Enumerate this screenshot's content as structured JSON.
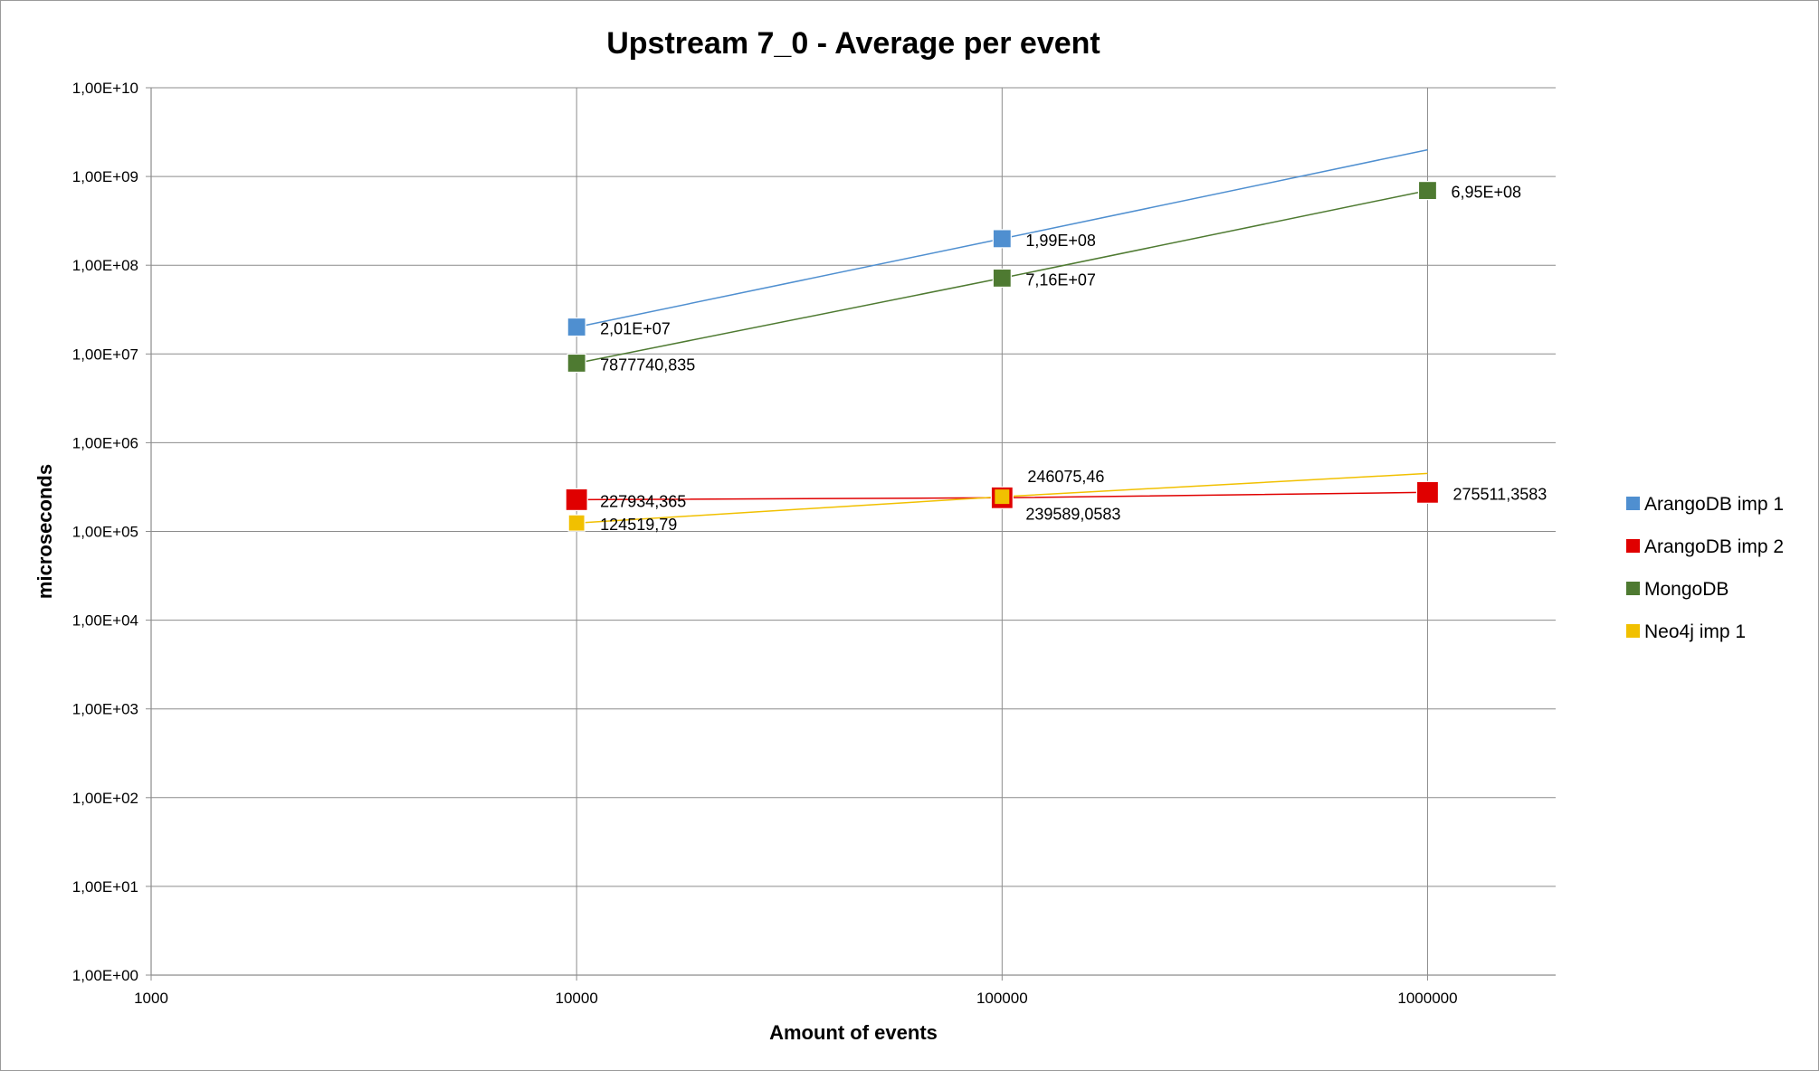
{
  "chart_data": {
    "type": "line",
    "title": "Upstream 7_0 - Average per event",
    "xlabel": "Amount of events",
    "ylabel": "microseconds",
    "x_scale": "log",
    "y_scale": "log",
    "xlim": [
      1000,
      2000000
    ],
    "ylim": [
      1,
      10000000000
    ],
    "x_ticks": [
      "1000",
      "10000",
      "100000",
      "1000000"
    ],
    "y_ticks": [
      "1,00E+00",
      "1,00E+01",
      "1,00E+02",
      "1,00E+03",
      "1,00E+04",
      "1,00E+05",
      "1,00E+06",
      "1,00E+07",
      "1,00E+08",
      "1,00E+09",
      "1,00E+10"
    ],
    "grid": true,
    "legend_position": "right",
    "series": [
      {
        "name": "ArangoDB imp 1",
        "color": "#4f8fd0",
        "x": [
          10000,
          100000,
          1000000
        ],
        "values": [
          20100000,
          199000000,
          2000000000
        ],
        "markers": [
          true,
          true,
          false
        ],
        "labels": [
          "2,01E+07",
          "1,99E+08",
          ""
        ]
      },
      {
        "name": "ArangoDB imp 2",
        "color": "#e00000",
        "x": [
          10000,
          100000,
          1000000
        ],
        "values": [
          227934.365,
          239589.0583,
          275511.3583
        ],
        "markers": [
          true,
          true,
          true
        ],
        "labels": [
          "227934,365",
          "239589,0583",
          "275511,3583"
        ]
      },
      {
        "name": "MongoDB",
        "color": "#4e7a31",
        "x": [
          10000,
          100000,
          1000000
        ],
        "values": [
          7877740.835,
          71600000,
          695000000
        ],
        "markers": [
          true,
          true,
          true
        ],
        "labels": [
          "7877740,835",
          "7,16E+07",
          "6,95E+08"
        ]
      },
      {
        "name": "Neo4j imp 1",
        "color": "#f1c000",
        "x": [
          10000,
          100000,
          1000000
        ],
        "values": [
          124519.79,
          246075.46,
          450000
        ],
        "markers": [
          true,
          true,
          false
        ],
        "labels": [
          "124519,79",
          "246075,46",
          ""
        ]
      }
    ]
  }
}
